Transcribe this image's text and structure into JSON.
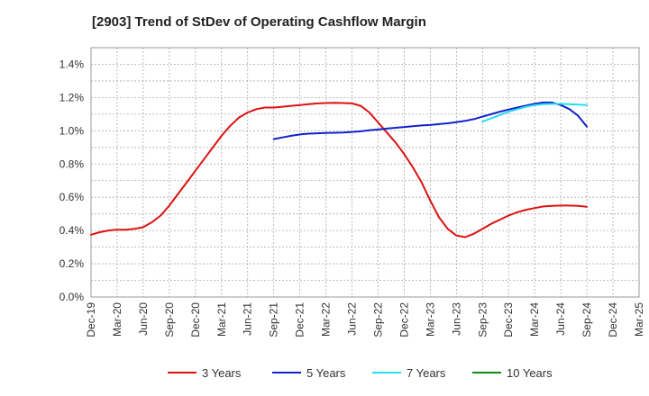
{
  "chart_data": {
    "type": "line",
    "title": "[2903]  Trend of StDev of Operating Cashflow Margin",
    "xlabel": "",
    "ylabel": "",
    "x_ticks": [
      "Dec-19",
      "Mar-20",
      "Jun-20",
      "Sep-20",
      "Dec-20",
      "Mar-21",
      "Jun-21",
      "Sep-21",
      "Dec-21",
      "Mar-22",
      "Jun-22",
      "Sep-22",
      "Dec-22",
      "Mar-23",
      "Jun-23",
      "Sep-23",
      "Dec-23",
      "Mar-24",
      "Jun-24",
      "Sep-24",
      "Dec-24",
      "Mar-25"
    ],
    "y_ticks": [
      "0.0%",
      "0.2%",
      "0.4%",
      "0.6%",
      "0.8%",
      "1.0%",
      "1.2%",
      "1.4%"
    ],
    "ylim": [
      0,
      1.5
    ],
    "grid": true,
    "legend_position": "bottom",
    "series": [
      {
        "name": "3 Years",
        "color": "#dd1111",
        "x": [
          "Dec-19",
          "Jan-20",
          "Feb-20",
          "Mar-20",
          "Apr-20",
          "May-20",
          "Jun-20",
          "Jul-20",
          "Aug-20",
          "Sep-20",
          "Oct-20",
          "Nov-20",
          "Dec-20",
          "Jan-21",
          "Feb-21",
          "Mar-21",
          "Apr-21",
          "May-21",
          "Jun-21",
          "Jul-21",
          "Aug-21",
          "Sep-21",
          "Oct-21",
          "Nov-21",
          "Dec-21",
          "Jan-22",
          "Feb-22",
          "Mar-22",
          "Apr-22",
          "May-22",
          "Jun-22",
          "Jul-22",
          "Aug-22",
          "Sep-22",
          "Oct-22",
          "Nov-22",
          "Dec-22",
          "Jan-23",
          "Feb-23",
          "Mar-23",
          "Apr-23",
          "May-23",
          "Jun-23",
          "Jul-23",
          "Aug-23",
          "Sep-23",
          "Oct-23",
          "Nov-23",
          "Dec-23",
          "Jan-24",
          "Feb-24",
          "Mar-24",
          "Apr-24",
          "May-24",
          "Jun-24",
          "Jul-24",
          "Aug-24",
          "Sep-24"
        ],
        "values": [
          0.375,
          0.39,
          0.4,
          0.405,
          0.405,
          0.41,
          0.42,
          0.45,
          0.49,
          0.55,
          0.62,
          0.69,
          0.76,
          0.83,
          0.9,
          0.97,
          1.03,
          1.08,
          1.11,
          1.13,
          1.14,
          1.14,
          1.145,
          1.15,
          1.155,
          1.16,
          1.165,
          1.167,
          1.168,
          1.167,
          1.165,
          1.15,
          1.11,
          1.05,
          0.99,
          0.93,
          0.86,
          0.78,
          0.69,
          0.58,
          0.48,
          0.41,
          0.37,
          0.36,
          0.38,
          0.41,
          0.44,
          0.465,
          0.49,
          0.51,
          0.525,
          0.535,
          0.545,
          0.548,
          0.55,
          0.55,
          0.548,
          0.543
        ]
      },
      {
        "name": "5 Years",
        "color": "#1122cc",
        "x": [
          "Sep-21",
          "Oct-21",
          "Nov-21",
          "Dec-21",
          "Jan-22",
          "Feb-22",
          "Mar-22",
          "Apr-22",
          "May-22",
          "Jun-22",
          "Jul-22",
          "Aug-22",
          "Sep-22",
          "Oct-22",
          "Nov-22",
          "Dec-22",
          "Jan-23",
          "Feb-23",
          "Mar-23",
          "Apr-23",
          "May-23",
          "Jun-23",
          "Jul-23",
          "Aug-23",
          "Sep-23",
          "Oct-23",
          "Nov-23",
          "Dec-23",
          "Jan-24",
          "Feb-24",
          "Mar-24",
          "Apr-24",
          "May-24",
          "Jun-24",
          "Jul-24",
          "Aug-24",
          "Sep-24"
        ],
        "values": [
          0.95,
          0.96,
          0.97,
          0.978,
          0.983,
          0.985,
          0.987,
          0.988,
          0.99,
          0.993,
          0.997,
          1.003,
          1.008,
          1.013,
          1.018,
          1.023,
          1.027,
          1.032,
          1.035,
          1.04,
          1.045,
          1.052,
          1.06,
          1.07,
          1.085,
          1.1,
          1.115,
          1.128,
          1.14,
          1.152,
          1.163,
          1.17,
          1.17,
          1.155,
          1.13,
          1.09,
          1.025
        ]
      },
      {
        "name": "7 Years",
        "color": "#22ddee",
        "x": [
          "Sep-23",
          "Oct-23",
          "Nov-23",
          "Dec-23",
          "Jan-24",
          "Feb-24",
          "Mar-24",
          "Apr-24",
          "May-24",
          "Jun-24",
          "Jul-24",
          "Aug-24",
          "Sep-24"
        ],
        "values": [
          1.055,
          1.075,
          1.095,
          1.115,
          1.13,
          1.145,
          1.155,
          1.16,
          1.162,
          1.162,
          1.16,
          1.158,
          1.155
        ]
      },
      {
        "name": "10 Years",
        "color": "#118811",
        "x": [],
        "values": []
      }
    ]
  }
}
